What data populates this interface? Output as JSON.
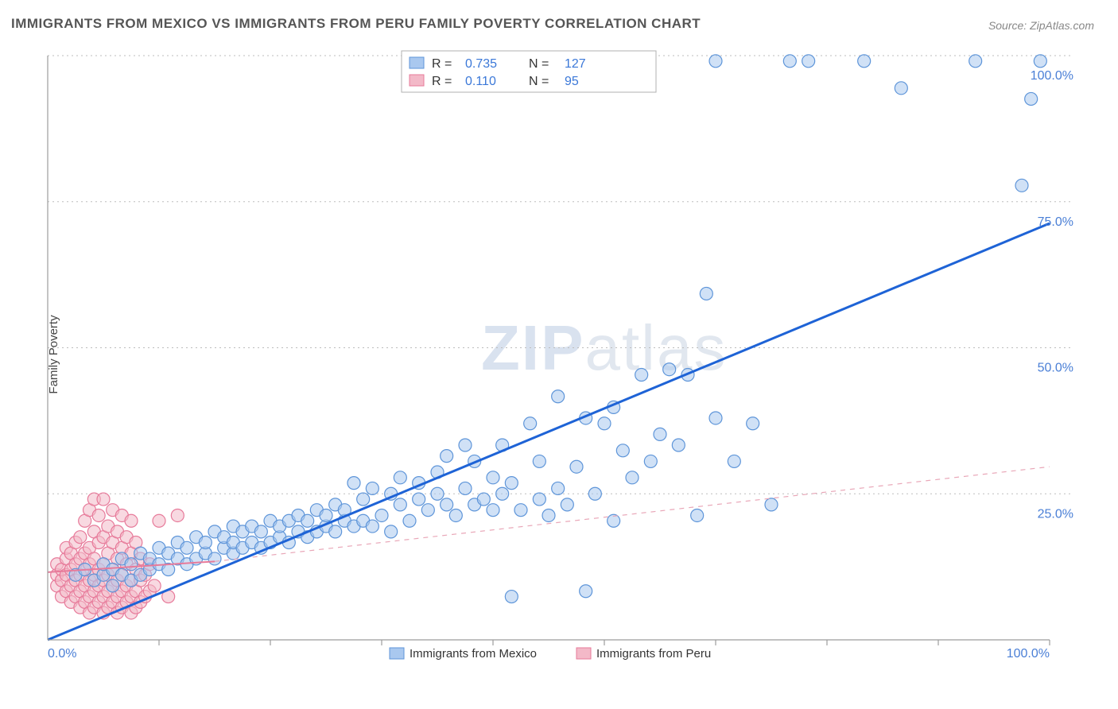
{
  "title": "IMMIGRANTS FROM MEXICO VS IMMIGRANTS FROM PERU FAMILY POVERTY CORRELATION CHART",
  "source": "Source: ZipAtlas.com",
  "ylabel": "Family Poverty",
  "watermark": {
    "part1": "ZIP",
    "part2": "atlas"
  },
  "chart": {
    "type": "scatter",
    "xlim": [
      0,
      108
    ],
    "ylim": [
      0,
      108
    ],
    "grid_y": [
      27,
      54,
      81,
      108
    ],
    "tick_y_labels": [
      {
        "v": 27,
        "label": "25.0%"
      },
      {
        "v": 54,
        "label": "50.0%"
      },
      {
        "v": 81,
        "label": "75.0%"
      },
      {
        "v": 108,
        "label": "100.0%"
      }
    ],
    "x_start_label": "0.0%",
    "x_end_label": "100.0%",
    "tick_x_minor": [
      12,
      24,
      36,
      48,
      60,
      72,
      84,
      96,
      108
    ],
    "marker_radius": 8,
    "background_color": "#ffffff",
    "grid_color": "#bdbdbd",
    "series": [
      {
        "name": "Immigrants from Mexico",
        "color_fill": "#a9c8ef",
        "color_stroke": "#5e95d9",
        "trend_color": "#1e63d6",
        "R": "0.735",
        "N": "127",
        "trend": {
          "x1": 0,
          "y1": 0,
          "x2": 108,
          "y2": 77
        },
        "points": [
          [
            3,
            12
          ],
          [
            4,
            13
          ],
          [
            5,
            11
          ],
          [
            6,
            12
          ],
          [
            6,
            14
          ],
          [
            7,
            10
          ],
          [
            7,
            13
          ],
          [
            8,
            12
          ],
          [
            8,
            15
          ],
          [
            9,
            11
          ],
          [
            9,
            14
          ],
          [
            10,
            12
          ],
          [
            10,
            16
          ],
          [
            11,
            13
          ],
          [
            11,
            15
          ],
          [
            12,
            14
          ],
          [
            12,
            17
          ],
          [
            13,
            13
          ],
          [
            13,
            16
          ],
          [
            14,
            15
          ],
          [
            14,
            18
          ],
          [
            15,
            14
          ],
          [
            15,
            17
          ],
          [
            16,
            15
          ],
          [
            16,
            19
          ],
          [
            17,
            16
          ],
          [
            17,
            18
          ],
          [
            18,
            15
          ],
          [
            18,
            20
          ],
          [
            19,
            17
          ],
          [
            19,
            19
          ],
          [
            20,
            16
          ],
          [
            20,
            18
          ],
          [
            20,
            21
          ],
          [
            21,
            17
          ],
          [
            21,
            20
          ],
          [
            22,
            18
          ],
          [
            22,
            21
          ],
          [
            23,
            17
          ],
          [
            23,
            20
          ],
          [
            24,
            18
          ],
          [
            24,
            22
          ],
          [
            25,
            19
          ],
          [
            25,
            21
          ],
          [
            26,
            18
          ],
          [
            26,
            22
          ],
          [
            27,
            20
          ],
          [
            27,
            23
          ],
          [
            28,
            19
          ],
          [
            28,
            22
          ],
          [
            29,
            20
          ],
          [
            29,
            24
          ],
          [
            30,
            21
          ],
          [
            30,
            23
          ],
          [
            31,
            20
          ],
          [
            31,
            25
          ],
          [
            32,
            22
          ],
          [
            32,
            24
          ],
          [
            33,
            21
          ],
          [
            33,
            29
          ],
          [
            34,
            22
          ],
          [
            34,
            26
          ],
          [
            35,
            21
          ],
          [
            35,
            28
          ],
          [
            36,
            23
          ],
          [
            37,
            20
          ],
          [
            37,
            27
          ],
          [
            38,
            25
          ],
          [
            38,
            30
          ],
          [
            39,
            22
          ],
          [
            40,
            26
          ],
          [
            40,
            29
          ],
          [
            41,
            24
          ],
          [
            42,
            27
          ],
          [
            42,
            31
          ],
          [
            43,
            25
          ],
          [
            43,
            34
          ],
          [
            44,
            23
          ],
          [
            45,
            28
          ],
          [
            45,
            36
          ],
          [
            46,
            25
          ],
          [
            46,
            33
          ],
          [
            47,
            26
          ],
          [
            48,
            30
          ],
          [
            48,
            24
          ],
          [
            49,
            27
          ],
          [
            49,
            36
          ],
          [
            50,
            8
          ],
          [
            50,
            29
          ],
          [
            51,
            24
          ],
          [
            52,
            40
          ],
          [
            53,
            26
          ],
          [
            53,
            33
          ],
          [
            54,
            23
          ],
          [
            55,
            28
          ],
          [
            55,
            45
          ],
          [
            56,
            25
          ],
          [
            57,
            32
          ],
          [
            58,
            9
          ],
          [
            58,
            41
          ],
          [
            59,
            27
          ],
          [
            60,
            40
          ],
          [
            61,
            22
          ],
          [
            61,
            43
          ],
          [
            62,
            35
          ],
          [
            63,
            30
          ],
          [
            64,
            49
          ],
          [
            65,
            33
          ],
          [
            66,
            38
          ],
          [
            67,
            50
          ],
          [
            68,
            36
          ],
          [
            69,
            49
          ],
          [
            70,
            23
          ],
          [
            71,
            64
          ],
          [
            72,
            41
          ],
          [
            74,
            33
          ],
          [
            76,
            40
          ],
          [
            78,
            25
          ],
          [
            80,
            107
          ],
          [
            82,
            107
          ],
          [
            88,
            107
          ],
          [
            92,
            102
          ],
          [
            100,
            107
          ],
          [
            105,
            84
          ],
          [
            106,
            100
          ],
          [
            107,
            107
          ],
          [
            72,
            107
          ]
        ]
      },
      {
        "name": "Immigrants from Peru",
        "color_fill": "#f3b9c8",
        "color_stroke": "#e77a9a",
        "trend_color_solid": "#e77a9a",
        "trend_color_dash": "#e9a7b8",
        "R": "0.110",
        "N": "95",
        "trend_solid": {
          "x1": 0,
          "y1": 12.5,
          "x2": 18,
          "y2": 14.5
        },
        "trend_dash": {
          "x1": 18,
          "y1": 14.5,
          "x2": 108,
          "y2": 32
        },
        "points": [
          [
            1,
            10
          ],
          [
            1,
            12
          ],
          [
            1,
            14
          ],
          [
            1.5,
            8
          ],
          [
            1.5,
            11
          ],
          [
            1.5,
            13
          ],
          [
            2,
            9
          ],
          [
            2,
            12
          ],
          [
            2,
            15
          ],
          [
            2,
            17
          ],
          [
            2.5,
            7
          ],
          [
            2.5,
            10
          ],
          [
            2.5,
            13
          ],
          [
            2.5,
            16
          ],
          [
            3,
            8
          ],
          [
            3,
            11
          ],
          [
            3,
            14
          ],
          [
            3,
            18
          ],
          [
            3.5,
            6
          ],
          [
            3.5,
            9
          ],
          [
            3.5,
            12
          ],
          [
            3.5,
            15
          ],
          [
            3.5,
            19
          ],
          [
            4,
            7
          ],
          [
            4,
            10
          ],
          [
            4,
            13
          ],
          [
            4,
            16
          ],
          [
            4,
            22
          ],
          [
            4.5,
            5
          ],
          [
            4.5,
            8
          ],
          [
            4.5,
            11
          ],
          [
            4.5,
            14
          ],
          [
            4.5,
            17
          ],
          [
            4.5,
            24
          ],
          [
            5,
            6
          ],
          [
            5,
            9
          ],
          [
            5,
            12
          ],
          [
            5,
            15
          ],
          [
            5,
            20
          ],
          [
            5,
            26
          ],
          [
            5.5,
            7
          ],
          [
            5.5,
            10
          ],
          [
            5.5,
            13
          ],
          [
            5.5,
            18
          ],
          [
            5.5,
            23
          ],
          [
            6,
            5
          ],
          [
            6,
            8
          ],
          [
            6,
            11
          ],
          [
            6,
            14
          ],
          [
            6,
            19
          ],
          [
            6,
            26
          ],
          [
            6.5,
            6
          ],
          [
            6.5,
            9
          ],
          [
            6.5,
            12
          ],
          [
            6.5,
            16
          ],
          [
            6.5,
            21
          ],
          [
            7,
            7
          ],
          [
            7,
            10
          ],
          [
            7,
            13
          ],
          [
            7,
            18
          ],
          [
            7,
            24
          ],
          [
            7.5,
            5
          ],
          [
            7.5,
            8
          ],
          [
            7.5,
            11
          ],
          [
            7.5,
            15
          ],
          [
            7.5,
            20
          ],
          [
            8,
            6
          ],
          [
            8,
            9
          ],
          [
            8,
            12
          ],
          [
            8,
            17
          ],
          [
            8,
            23
          ],
          [
            8.5,
            7
          ],
          [
            8.5,
            10
          ],
          [
            8.5,
            14
          ],
          [
            8.5,
            19
          ],
          [
            9,
            5
          ],
          [
            9,
            8
          ],
          [
            9,
            11
          ],
          [
            9,
            16
          ],
          [
            9,
            22
          ],
          [
            9.5,
            6
          ],
          [
            9.5,
            9
          ],
          [
            9.5,
            13
          ],
          [
            9.5,
            18
          ],
          [
            10,
            7
          ],
          [
            10,
            11
          ],
          [
            10,
            15
          ],
          [
            10.5,
            8
          ],
          [
            10.5,
            12
          ],
          [
            11,
            9
          ],
          [
            11,
            14
          ],
          [
            11.5,
            10
          ],
          [
            12,
            22
          ],
          [
            13,
            8
          ],
          [
            14,
            23
          ]
        ]
      }
    ],
    "legend": {
      "x_label_box": {
        "items": [
          {
            "swatch": "blue",
            "label": "Immigrants from Mexico"
          },
          {
            "swatch": "pink",
            "label": "Immigrants from Peru"
          }
        ]
      },
      "stat_box": {
        "rows": [
          {
            "swatch": "blue",
            "R_label": "R =",
            "R": "0.735",
            "N_label": "N =",
            "N": "127"
          },
          {
            "swatch": "pink",
            "R_label": "R =",
            "R": "0.110",
            "N_label": "N =",
            "N": "95"
          }
        ]
      }
    }
  }
}
